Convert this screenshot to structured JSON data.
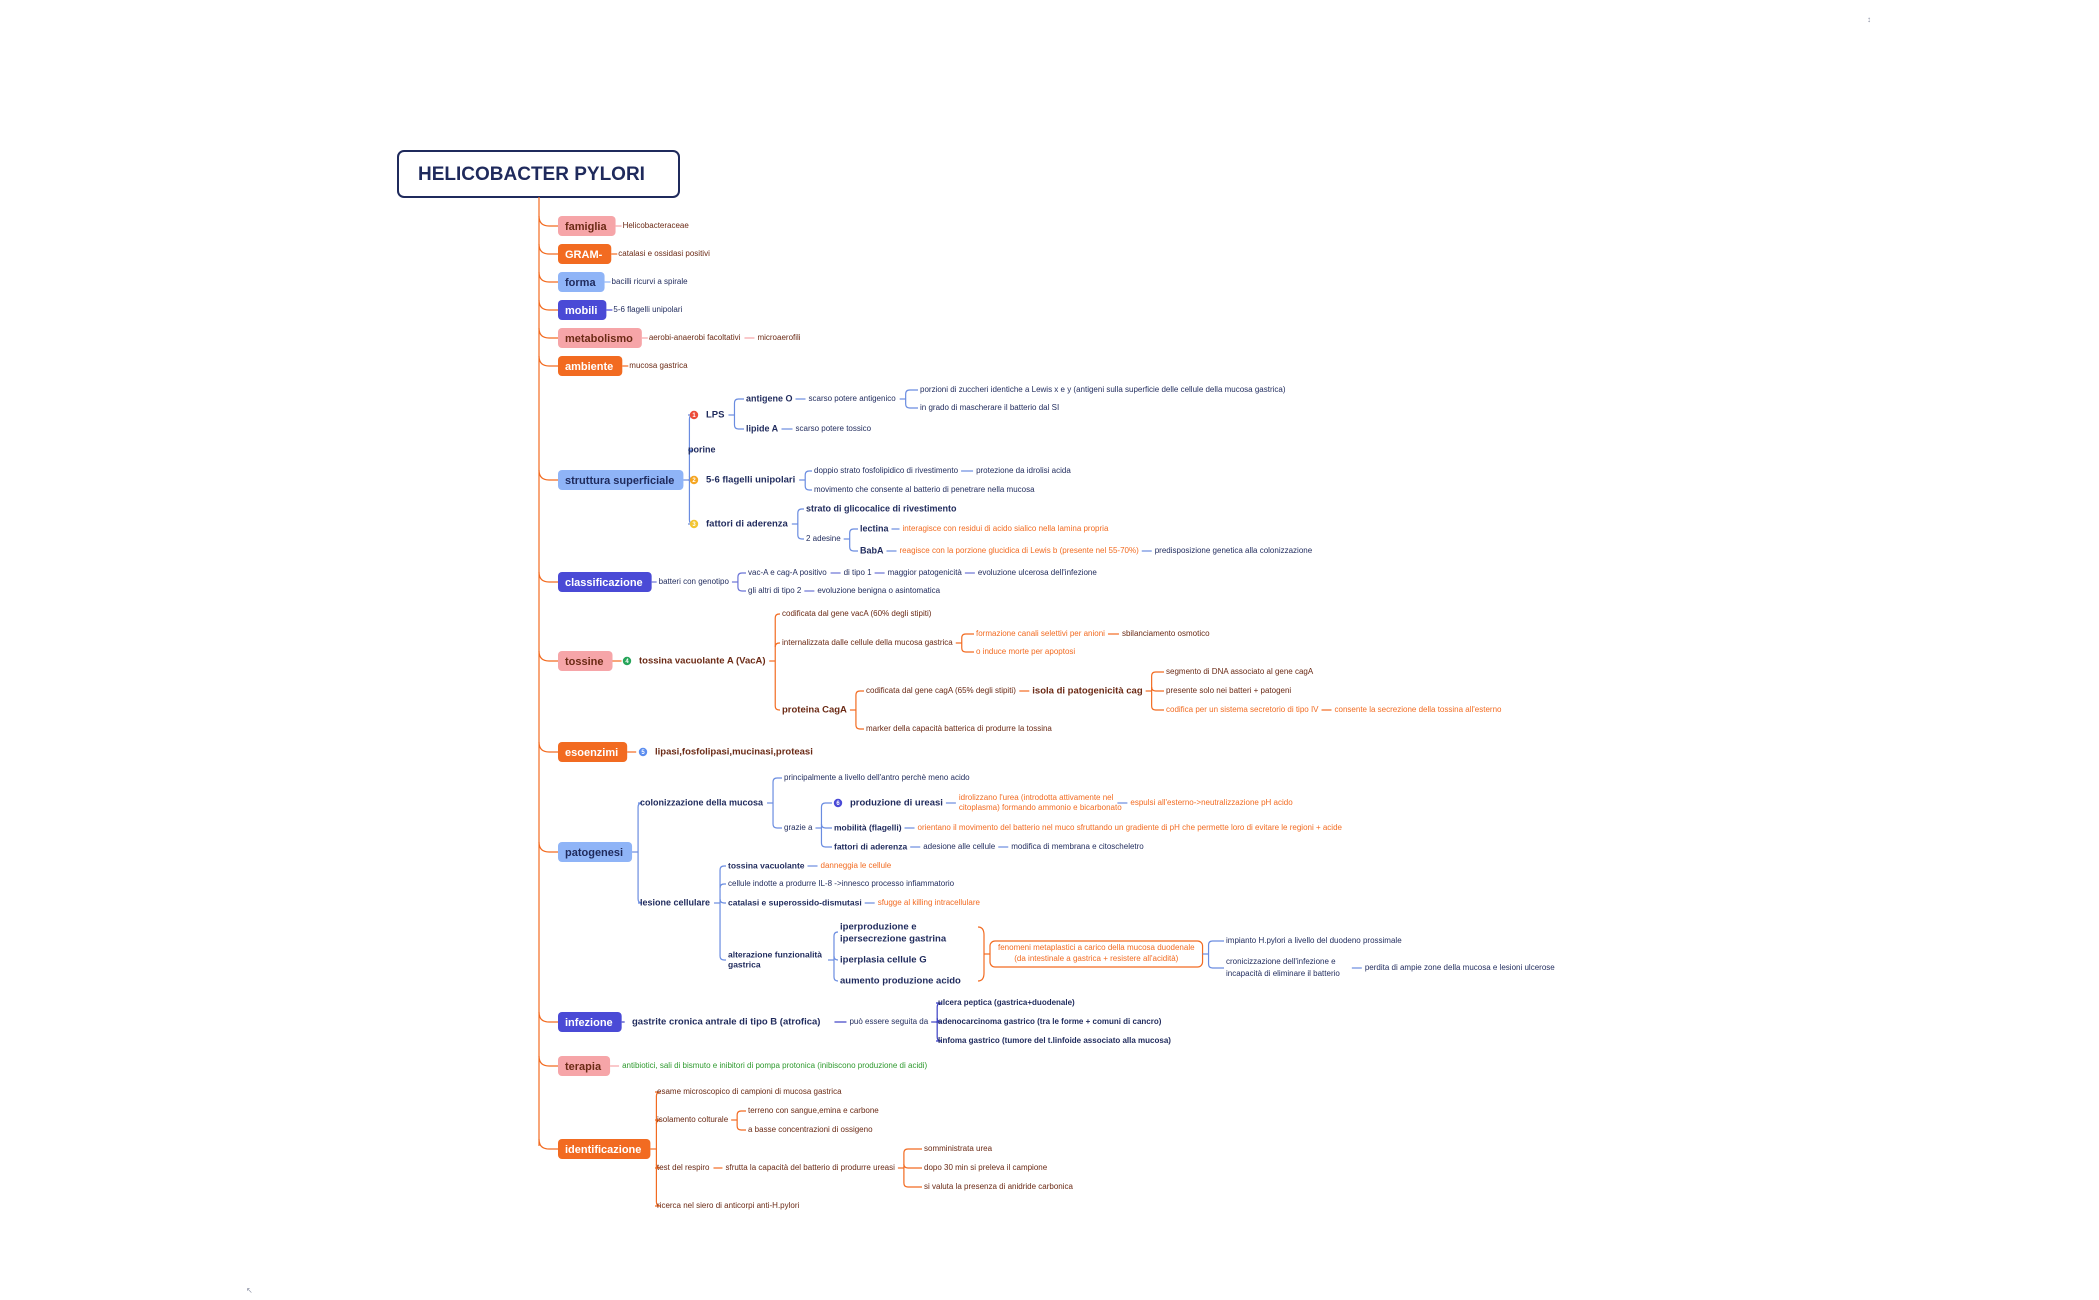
{
  "root": "HELICOBACTER PYLORI",
  "colors": {
    "navy": "#1f2a5c",
    "orange": "#f26b21",
    "pink": "#f6a5a8",
    "blue": "#8fb4f7",
    "purple": "#4a4ad6",
    "green": "#2e9a2e",
    "dark_text": "#1f2a5c",
    "brown": "#6b2a15",
    "red": "#ec4d3a"
  },
  "branches": [
    {
      "id": "famiglia",
      "label": "famiglia",
      "style": "pink",
      "children": [
        {
          "text": "Helicobacteraceae",
          "color": "brown"
        }
      ]
    },
    {
      "id": "gram",
      "label": "GRAM-",
      "style": "orange",
      "children": [
        {
          "text": "catalasi e ossidasi positivi",
          "color": "brown"
        }
      ]
    },
    {
      "id": "forma",
      "label": "forma",
      "style": "blue",
      "children": [
        {
          "text": "bacilli ricurvi a spirale",
          "color": "navy"
        }
      ]
    },
    {
      "id": "mobili",
      "label": "mobili",
      "style": "purple",
      "children": [
        {
          "text": "5-6 flagelli unipolari",
          "color": "navy"
        }
      ]
    },
    {
      "id": "metabolismo",
      "label": "metabolismo",
      "style": "pink",
      "children": [
        {
          "text": "aerobi-anaerobi facoltativi",
          "color": "brown",
          "next": "microaerofili"
        }
      ]
    },
    {
      "id": "ambiente",
      "label": "ambiente",
      "style": "orange",
      "children": [
        {
          "text": "mucosa gastrica",
          "color": "brown"
        }
      ]
    },
    {
      "id": "struttura",
      "label": "struttura superficiale",
      "style": "blue"
    },
    {
      "id": "classificazione",
      "label": "classificazione",
      "style": "purple"
    },
    {
      "id": "tossine",
      "label": "tossine",
      "style": "pink"
    },
    {
      "id": "esoenzimi",
      "label": "esoenzimi",
      "style": "orange"
    },
    {
      "id": "patogenesi",
      "label": "patogenesi",
      "style": "blue"
    },
    {
      "id": "infezione",
      "label": "infezione",
      "style": "purple"
    },
    {
      "id": "terapia",
      "label": "terapia",
      "style": "pink"
    },
    {
      "id": "identificazione",
      "label": "identificazione",
      "style": "orange"
    }
  ],
  "struttura": {
    "lps": {
      "badge": "1",
      "label": "LPS",
      "antigene_o": "antigene O",
      "antigene_o_desc": "scarso potere antigenico",
      "antigene_o_sub": [
        "porzioni di zuccheri identiche a Lewis x e y (antigeni sulla superficie delle cellule della mucosa gastrica)",
        "in grado di mascherare il batterio dal SI"
      ],
      "lipide_a": "lipide A",
      "lipide_a_desc": "scarso potere tossico"
    },
    "porine": "porine",
    "flagelli": {
      "badge": "2",
      "label": "5-6 flagelli unipolari",
      "items": [
        "doppio strato fosfolipidico di rivestimento",
        "movimento che consente al batterio di penetrare nella mucosa"
      ],
      "item0_next": "protezione da idrolisi acida"
    },
    "aderenza": {
      "badge": "3",
      "label": "fattori di aderenza",
      "glicocalice": "strato di glicocalice di rivestimento",
      "adesine": "2 adesine",
      "lectina": "lectina",
      "lectina_desc": "interagisce con residui di acido sialico nella lamina propria",
      "baba": "BabA",
      "baba_desc": "reagisce con la porzione glucidica di Lewis b (presente nel 55-70%)",
      "baba_next": "predisposizione genetica alla colonizzazione"
    }
  },
  "classificazione": {
    "root": "batteri con genotipo",
    "a": "vac-A e cag-A positivo",
    "a1": "di tipo 1",
    "a2": "maggior patogenicità",
    "a3": "evoluzione ulcerosa dell'infezione",
    "b": "gli altri di tipo 2",
    "b1": "evoluzione benigna o asintomatica"
  },
  "tossine": {
    "badge": "4",
    "vaca": "tossina vacuolante A (VacA)",
    "vaca_items": [
      "codificata dal gene vacA (60% degli stipiti)",
      "internalizzata dalle cellule della mucosa gastrica"
    ],
    "internal_sub": [
      "formazione canali selettivi per anioni",
      "o induce morte per apoptosi"
    ],
    "internal_sub0_next": "sbilanciamento osmotico",
    "caga": "proteina CagA",
    "caga_items": [
      "codificata dal gene cagA (65% degli stipiti)",
      "marker della capacità batterica di produrre la tossina"
    ],
    "isola": "isola di patogenicità cag",
    "isola_items": [
      "segmento di DNA associato al gene cagA",
      "presente solo nei batteri + patogeni",
      "codifica per un sistema secretorio di tipo IV"
    ],
    "isola_item2_next": "consente la secrezione della tossina all'esterno"
  },
  "esoenzimi": {
    "badge": "5",
    "text": "lipasi,fosfolipasi,mucinasi,proteasi"
  },
  "patogenesi": {
    "colonizzazione": "colonizzazione della mucosa",
    "col_a": "principalmente a livello dell'antro perchè meno acido",
    "grazie": "grazie a",
    "ureasi_badge": "6",
    "ureasi": "produzione di ureasi",
    "ureasi_desc": [
      "idrolizzano l'urea (introdotta attivamente nel",
      "citoplasma) formando ammonio e bicarbonato"
    ],
    "ureasi_next": "espulsi all'esterno->neutralizzazione pH acido",
    "mobilita": "mobilità (flagelli)",
    "mobilita_desc": "orientano il movimento del batterio nel muco sfruttando un gradiente di pH che permette loro di evitare le regioni + acide",
    "aderenza": "fattori di aderenza",
    "aderenza_desc": "adesione alle cellule",
    "aderenza_next": "modifica di membrana e citoscheletro",
    "lesione": "lesione cellulare",
    "vac": "tossina vacuolante",
    "vac_desc": "danneggia le cellule",
    "il8": "cellule indotte a produrre IL-8 ->innesco processo infiammatorio",
    "catalasi": "catalasi e superossido-dismutasi",
    "catalasi_desc": "sfugge al killing intracellulare",
    "alterazione": [
      "alterazione funzionalità",
      "gastrica"
    ],
    "alter_items": [
      [
        "iperproduzione e",
        "ipersecrezione gastrina"
      ],
      [
        "iperplasia cellule G"
      ],
      [
        "aumento produzione acido"
      ]
    ],
    "fenomeni": [
      "fenomeni metaplastici a carico della mucosa duodenale",
      "(da intestinale a gastrica + resistere all'acidità)"
    ],
    "fen_items": [
      [
        "impianto H.pylori a livello del duodeno prossimale"
      ],
      [
        "cronicizzazione dell'infezione e",
        "incapacità di eliminare il batterio"
      ]
    ],
    "fen_next": "perdita di ampie zone della mucosa e lesioni ulcerose"
  },
  "infezione": {
    "gastrite": "gastrite cronica antrale di tipo B (atrofica)",
    "seguita": "può essere seguita da",
    "items": [
      "ulcera peptica (gastrica+duodenale)",
      "adenocarcinoma gastrico (tra le forme + comuni di cancro)",
      "linfoma gastrico (tumore del t.linfoide associato alla mucosa)"
    ]
  },
  "terapia": {
    "text": "antibiotici, sali di bismuto e inibitori di pompa protonica (inibiscono produzione di acidi)"
  },
  "identificazione": {
    "items": [
      "esame microscopico di campioni di mucosa gastrica",
      "isolamento colturale",
      "test del respiro",
      "ricerca nel siero di anticorpi anti-H.pylori"
    ],
    "colturale": [
      "terreno con sangue,emina e carbone",
      "a basse concentrazioni di ossigeno"
    ],
    "respiro": "sfrutta la capacità del batterio di produrre ureasi",
    "respiro_sub": [
      "somministrata urea",
      "dopo 30 min si preleva il campione",
      "si valuta la presenza di anidride carbonica"
    ]
  },
  "corner_marks": {
    "top": "↕",
    "bottom": "↖"
  }
}
